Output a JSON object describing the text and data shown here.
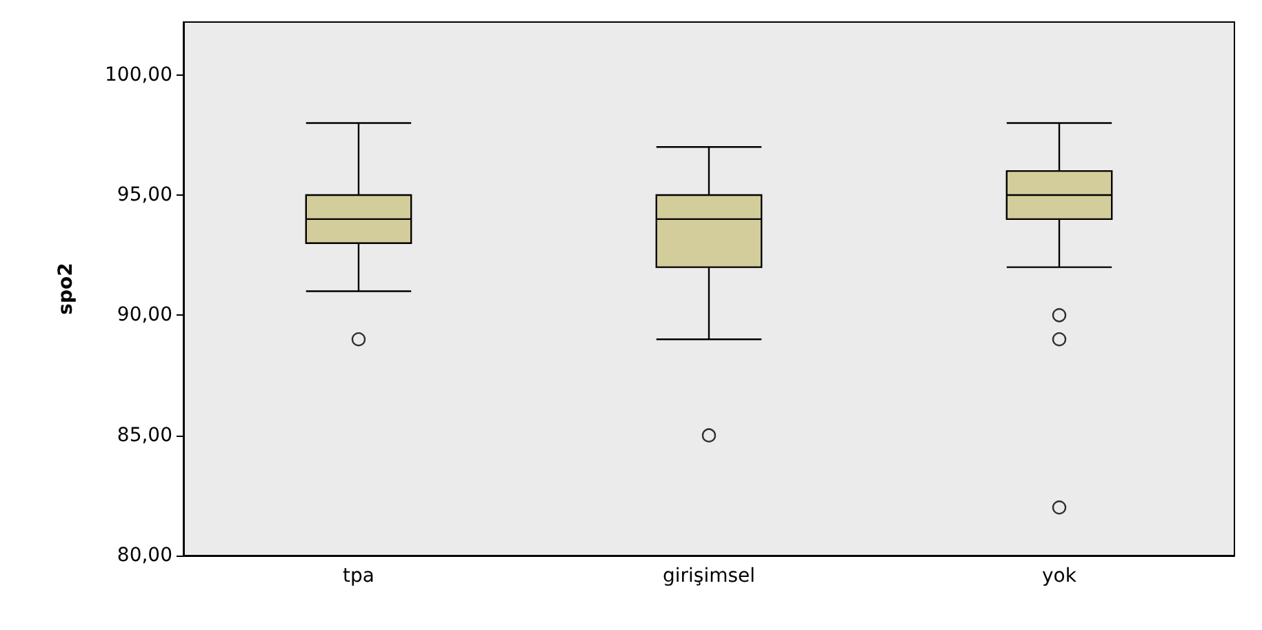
{
  "chart_data": {
    "type": "box",
    "ylabel": "spo2",
    "categories": [
      "tpa",
      "girişimsel",
      "yok"
    ],
    "series": [
      {
        "color": "#d3cd9b",
        "boxes": [
          {
            "low": 91,
            "q1": 93,
            "median": 94,
            "q3": 95,
            "high": 98,
            "outliers": [
              89
            ]
          },
          {
            "low": 89,
            "q1": 92,
            "median": 94,
            "q3": 95,
            "high": 97,
            "outliers": [
              85
            ]
          },
          {
            "low": 92,
            "q1": 94,
            "median": 95,
            "q3": 96,
            "high": 98,
            "outliers": [
              90,
              89,
              82
            ]
          }
        ]
      }
    ],
    "ylim": [
      80,
      102.2
    ],
    "yticks": [
      {
        "value": 80,
        "label": "80,00"
      },
      {
        "value": 85,
        "label": "85,00"
      },
      {
        "value": 90,
        "label": "90,00"
      },
      {
        "value": 95,
        "label": "95,00"
      },
      {
        "value": 100,
        "label": "100,00"
      }
    ],
    "grid": false
  }
}
